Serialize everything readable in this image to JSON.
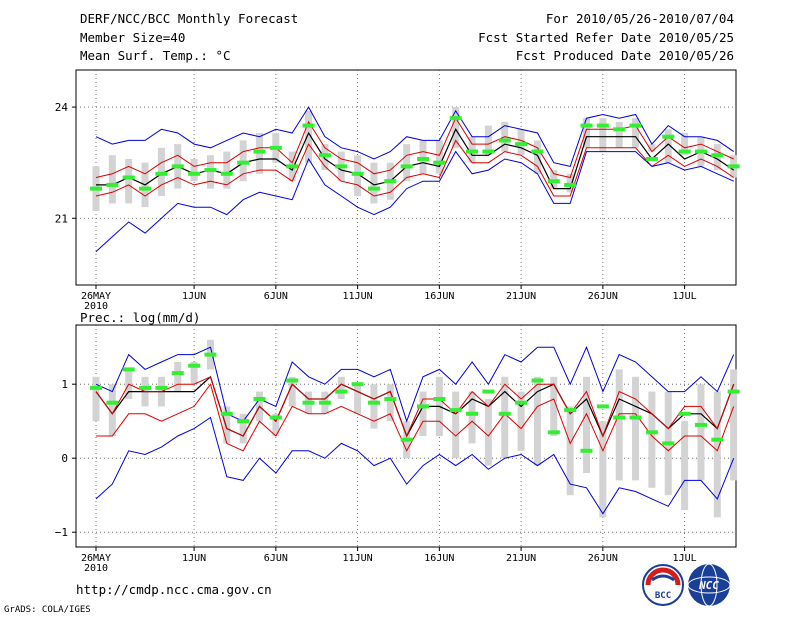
{
  "header": {
    "title": "DERF/NCC/BCC Monthly Forecast",
    "member_size": "Member Size=40",
    "variable": "Mean Surf. Temp.: °C",
    "period": "For 2010/05/26-2010/07/04",
    "fcst_started": "Fcst Started Refer Date 2010/05/25",
    "fcst_produced": "Fcst Produced Date 2010/05/26"
  },
  "footer": {
    "url": "http://cmdp.ncc.cma.gov.cn",
    "credit": "GrADS: COLA/IGES",
    "logo_bcc": "BCC",
    "logo_ncc": "NCC"
  },
  "colors": {
    "box": "#d3d3d3",
    "obs": "#33ee33",
    "envelope": "#0000dd",
    "spread": "#dd0000",
    "mean": "#000000"
  },
  "chart_data": [
    {
      "type": "line",
      "title": "",
      "ylabel": "Mean Surf. Temp.: °C",
      "ylim": [
        19.2,
        25.0
      ],
      "yticks": [
        21,
        24
      ],
      "ytick_labels": [
        "21",
        "24"
      ],
      "xtick_days": [
        0,
        6,
        11,
        16,
        21,
        26,
        31,
        36
      ],
      "xtick_labels": [
        "26MAY",
        "1JUN",
        "6JUN",
        "11JUN",
        "16JUN",
        "21JUN",
        "26JUN",
        "1JUL"
      ],
      "x_year_label": "2010",
      "x": [
        0,
        1,
        2,
        3,
        4,
        5,
        6,
        7,
        8,
        9,
        10,
        11,
        12,
        13,
        14,
        15,
        16,
        17,
        18,
        19,
        20,
        21,
        22,
        23,
        24,
        25,
        26,
        27,
        28,
        29,
        30,
        31,
        32,
        33,
        34,
        35,
        36,
        37,
        38,
        39
      ],
      "box_low": [
        21.2,
        21.4,
        21.4,
        21.3,
        21.6,
        21.8,
        22.0,
        21.8,
        21.8,
        22.0,
        22.2,
        22.5,
        22.0,
        22.5,
        22.3,
        22.0,
        21.6,
        21.4,
        21.5,
        22.0,
        22.2,
        22.2,
        22.9,
        22.5,
        22.7,
        22.8,
        22.7,
        22.2,
        21.8,
        21.7,
        22.9,
        22.8,
        22.9,
        22.9,
        22.8,
        22.5,
        22.7,
        22.4,
        22.3,
        22.1
      ],
      "box_high": [
        22.4,
        22.7,
        22.6,
        22.5,
        22.9,
        23.0,
        22.6,
        22.7,
        22.8,
        23.1,
        23.3,
        23.3,
        22.8,
        23.9,
        23.0,
        22.8,
        22.7,
        22.5,
        22.5,
        23.0,
        23.1,
        23.1,
        24.0,
        23.2,
        23.5,
        23.6,
        23.4,
        23.1,
        22.3,
        22.2,
        23.7,
        23.7,
        23.6,
        23.7,
        23.0,
        23.4,
        23.3,
        23.2,
        23.0,
        22.7
      ],
      "series": [
        {
          "name": "ensemble-max",
          "values": [
            23.2,
            23.0,
            23.1,
            23.1,
            23.4,
            23.3,
            23.0,
            22.9,
            23.1,
            23.3,
            23.2,
            23.4,
            23.3,
            24.0,
            23.2,
            22.9,
            22.8,
            22.6,
            22.8,
            23.2,
            23.1,
            23.1,
            23.9,
            23.2,
            23.2,
            23.5,
            23.4,
            23.3,
            22.5,
            22.4,
            23.7,
            23.8,
            23.7,
            23.8,
            23.0,
            23.5,
            23.2,
            23.2,
            23.1,
            22.8
          ]
        },
        {
          "name": "spread-upper",
          "values": [
            22.1,
            22.2,
            22.4,
            22.2,
            22.5,
            22.7,
            22.4,
            22.5,
            22.5,
            22.8,
            22.9,
            22.9,
            22.5,
            23.6,
            22.9,
            22.6,
            22.5,
            22.2,
            22.3,
            22.7,
            22.8,
            22.7,
            23.7,
            23.0,
            23.0,
            23.2,
            23.1,
            22.9,
            22.2,
            22.1,
            23.4,
            23.4,
            23.4,
            23.5,
            22.8,
            23.2,
            22.9,
            23.0,
            22.8,
            22.6
          ]
        },
        {
          "name": "ensemble-mean",
          "values": [
            21.9,
            21.9,
            22.1,
            21.9,
            22.2,
            22.4,
            22.2,
            22.3,
            22.2,
            22.5,
            22.6,
            22.6,
            22.3,
            23.3,
            22.6,
            22.3,
            22.2,
            21.9,
            22.0,
            22.4,
            22.5,
            22.4,
            23.4,
            22.7,
            22.7,
            23.0,
            22.9,
            22.7,
            21.8,
            21.8,
            23.2,
            23.2,
            23.2,
            23.2,
            22.6,
            23.0,
            22.6,
            22.8,
            22.6,
            22.3
          ]
        },
        {
          "name": "spread-lower",
          "values": [
            21.6,
            21.7,
            21.9,
            21.6,
            21.9,
            22.1,
            21.9,
            22.0,
            21.9,
            22.2,
            22.3,
            22.3,
            22.0,
            23.0,
            22.4,
            22.0,
            21.9,
            21.6,
            21.7,
            22.1,
            22.2,
            22.1,
            23.1,
            22.5,
            22.5,
            22.8,
            22.7,
            22.4,
            21.6,
            21.6,
            22.9,
            22.9,
            22.9,
            22.9,
            22.4,
            22.7,
            22.4,
            22.6,
            22.4,
            22.1
          ]
        },
        {
          "name": "ensemble-min",
          "values": [
            20.1,
            20.5,
            20.9,
            20.6,
            21.0,
            21.4,
            21.3,
            21.3,
            21.1,
            21.5,
            21.7,
            21.6,
            21.5,
            22.6,
            21.9,
            21.6,
            21.3,
            21.1,
            21.3,
            21.8,
            22.0,
            22.0,
            22.8,
            22.2,
            22.3,
            22.6,
            22.5,
            22.2,
            21.4,
            21.4,
            22.8,
            22.8,
            22.8,
            22.8,
            22.4,
            22.5,
            22.3,
            22.4,
            22.2,
            22.0
          ]
        }
      ],
      "obs": [
        21.8,
        21.9,
        22.1,
        21.8,
        22.2,
        22.4,
        22.2,
        22.3,
        22.2,
        22.5,
        22.8,
        22.9,
        22.4,
        23.5,
        22.7,
        22.4,
        22.2,
        21.8,
        22.0,
        22.4,
        22.6,
        22.5,
        23.7,
        22.8,
        22.8,
        23.1,
        23.0,
        22.8,
        22.0,
        21.9,
        23.5,
        23.5,
        23.4,
        23.5,
        22.6,
        23.2,
        22.8,
        22.8,
        22.7,
        22.4
      ]
    },
    {
      "type": "line",
      "title": "",
      "ylabel": "Prec.: log(mm/d)",
      "ylim": [
        -1.2,
        1.8
      ],
      "yticks": [
        -1,
        0,
        1
      ],
      "ytick_labels": [
        "−1",
        "0",
        "1"
      ],
      "xtick_days": [
        0,
        6,
        11,
        16,
        21,
        26,
        31,
        36
      ],
      "xtick_labels": [
        "26MAY",
        "1JUN",
        "6JUN",
        "11JUN",
        "16JUN",
        "21JUN",
        "26JUN",
        "1JUL"
      ],
      "x_year_label": "2010",
      "x": [
        0,
        1,
        2,
        3,
        4,
        5,
        6,
        7,
        8,
        9,
        10,
        11,
        12,
        13,
        14,
        15,
        16,
        17,
        18,
        19,
        20,
        21,
        22,
        23,
        24,
        25,
        26,
        27,
        28,
        29,
        30,
        31,
        32,
        33,
        34,
        35,
        36,
        37,
        38,
        39
      ],
      "box_low": [
        0.5,
        0.3,
        0.8,
        0.7,
        0.7,
        0.9,
        1.0,
        1.2,
        0.2,
        0.2,
        0.5,
        0.3,
        0.7,
        0.6,
        0.6,
        0.8,
        0.6,
        0.4,
        0.5,
        0.0,
        0.3,
        0.3,
        0.0,
        0.2,
        -0.1,
        0.0,
        0.1,
        -0.1,
        0.3,
        -0.5,
        -0.2,
        -0.8,
        -0.3,
        -0.3,
        -0.4,
        -0.5,
        -0.7,
        -0.3,
        -0.8,
        -0.3
      ],
      "box_high": [
        1.1,
        1.0,
        1.2,
        1.1,
        1.1,
        1.3,
        1.3,
        1.6,
        0.7,
        0.6,
        0.9,
        0.6,
        1.1,
        0.9,
        0.9,
        1.1,
        1.0,
        1.0,
        1.0,
        0.5,
        0.9,
        1.1,
        0.9,
        0.9,
        0.8,
        1.1,
        0.9,
        1.1,
        1.1,
        0.7,
        1.1,
        0.5,
        1.2,
        1.1,
        0.9,
        0.9,
        0.5,
        1.0,
        0.9,
        1.2
      ],
      "series": [
        {
          "name": "ensemble-max",
          "values": [
            1.0,
            0.9,
            1.4,
            1.2,
            1.3,
            1.4,
            1.4,
            1.5,
            0.6,
            0.5,
            0.8,
            0.7,
            1.3,
            1.1,
            1.0,
            1.2,
            1.2,
            1.1,
            1.2,
            0.5,
            1.1,
            1.2,
            1.0,
            1.3,
            1.0,
            1.4,
            1.3,
            1.5,
            1.5,
            1.0,
            1.5,
            0.9,
            1.4,
            1.3,
            1.1,
            0.9,
            0.9,
            1.1,
            0.9,
            1.4
          ]
        },
        {
          "name": "ensemble-mean",
          "values": [
            0.9,
            0.6,
            0.9,
            0.9,
            0.9,
            0.9,
            0.9,
            1.1,
            0.4,
            0.3,
            0.7,
            0.5,
            1.0,
            0.8,
            0.8,
            1.0,
            0.9,
            0.8,
            0.9,
            0.3,
            0.7,
            0.7,
            0.6,
            0.8,
            0.7,
            0.9,
            0.7,
            0.9,
            1.0,
            0.6,
            0.8,
            0.3,
            0.8,
            0.7,
            0.6,
            0.4,
            0.6,
            0.6,
            0.4,
            1.0
          ]
        },
        {
          "name": "spread-upper",
          "values": [
            0.9,
            0.6,
            1.0,
            0.9,
            0.9,
            1.0,
            1.0,
            1.1,
            0.4,
            0.3,
            0.7,
            0.5,
            1.0,
            0.8,
            0.8,
            1.0,
            0.9,
            0.8,
            0.9,
            0.3,
            0.8,
            0.8,
            0.6,
            0.9,
            0.7,
            1.0,
            0.8,
            1.0,
            1.0,
            0.6,
            0.9,
            0.3,
            0.9,
            0.8,
            0.6,
            0.4,
            0.7,
            0.7,
            0.4,
            1.0
          ]
        },
        {
          "name": "spread-lower",
          "values": [
            0.3,
            0.3,
            0.6,
            0.6,
            0.5,
            0.6,
            0.7,
            1.0,
            0.2,
            0.1,
            0.5,
            0.3,
            0.7,
            0.6,
            0.6,
            0.7,
            0.6,
            0.5,
            0.6,
            0.1,
            0.5,
            0.5,
            0.3,
            0.5,
            0.3,
            0.6,
            0.4,
            0.7,
            0.8,
            0.2,
            0.6,
            0.1,
            0.6,
            0.6,
            0.3,
            0.1,
            0.3,
            0.3,
            0.1,
            0.7
          ]
        },
        {
          "name": "ensemble-min",
          "values": [
            -0.55,
            -0.35,
            0.1,
            0.05,
            0.15,
            0.3,
            0.4,
            0.55,
            -0.25,
            -0.3,
            0.0,
            -0.2,
            0.1,
            0.1,
            0.0,
            0.2,
            0.1,
            -0.1,
            0.0,
            -0.35,
            -0.1,
            0.05,
            -0.1,
            0.05,
            -0.15,
            0.0,
            0.05,
            -0.1,
            0.05,
            -0.35,
            -0.4,
            -0.75,
            -0.4,
            -0.45,
            -0.55,
            -0.65,
            -0.3,
            -0.3,
            -0.55,
            0.0
          ]
        }
      ],
      "obs": [
        0.95,
        0.75,
        1.2,
        0.95,
        0.95,
        1.15,
        1.25,
        1.4,
        0.6,
        0.5,
        0.8,
        0.55,
        1.05,
        0.75,
        0.75,
        0.9,
        1.0,
        0.75,
        0.8,
        0.25,
        0.7,
        0.8,
        0.65,
        0.6,
        0.9,
        0.6,
        0.75,
        1.05,
        0.35,
        0.65,
        0.1,
        0.7,
        0.55,
        0.55,
        0.35,
        0.2,
        0.6,
        0.45,
        0.25,
        0.9
      ]
    }
  ]
}
